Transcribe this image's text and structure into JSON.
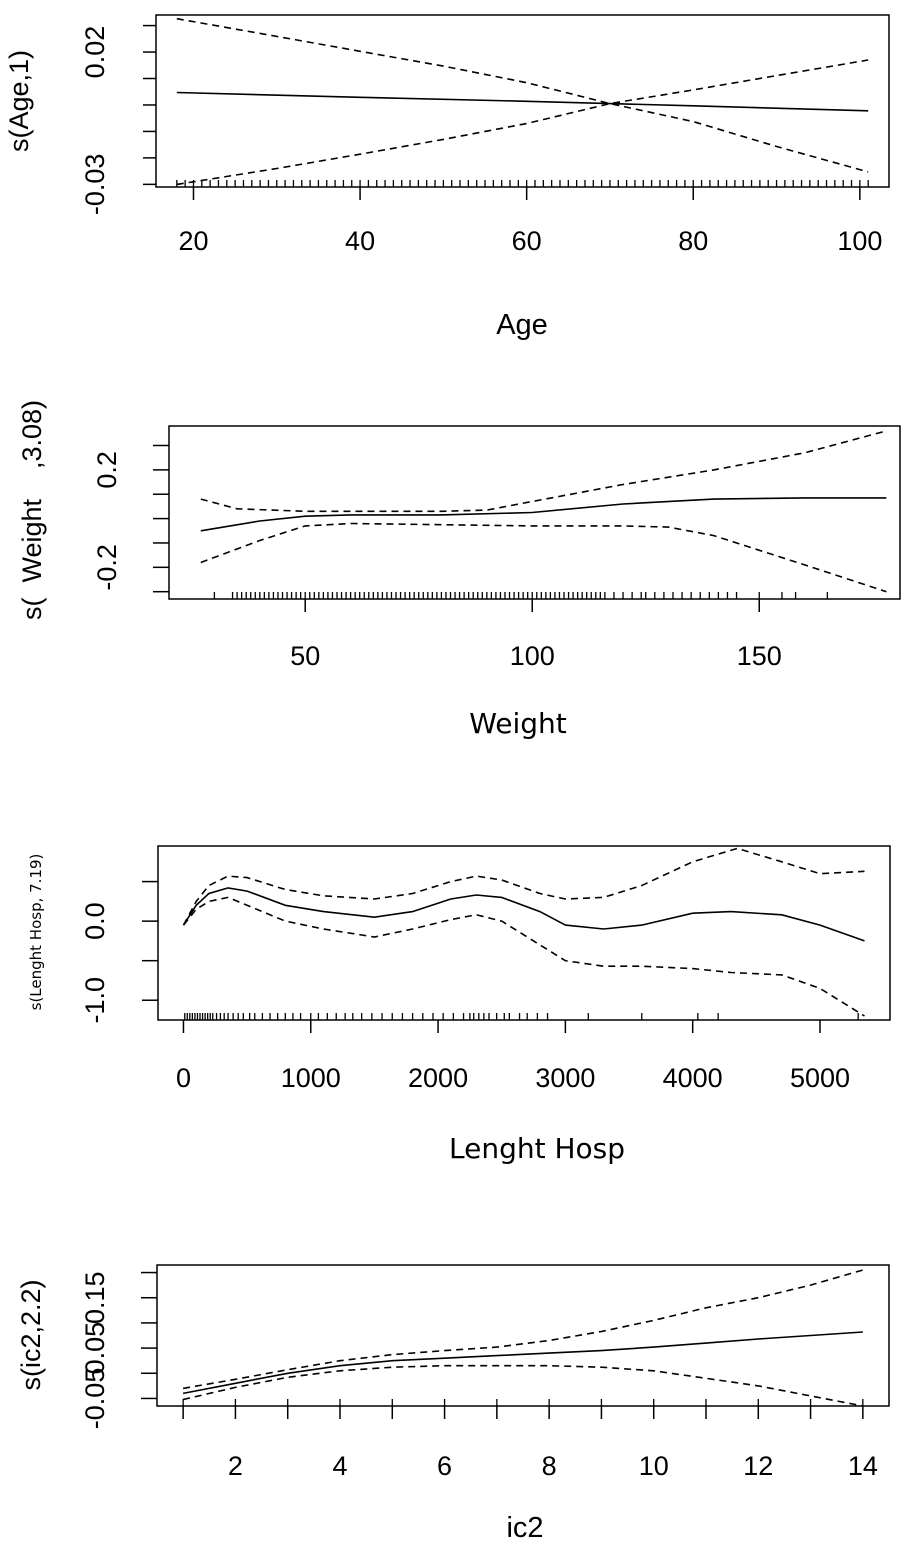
{
  "chart_data": [
    {
      "type": "line",
      "xlabel": "Age",
      "ylabel": "s(Age,1)",
      "xlim": [
        15.5,
        103.5
      ],
      "ylim": [
        -0.031,
        0.034
      ],
      "xticks": [
        20,
        40,
        60,
        80,
        100
      ],
      "xtick_labels": [
        "20",
        "40",
        "60",
        "80",
        "100"
      ],
      "yticks": [
        -0.03,
        -0.02,
        -0.01,
        0.0,
        0.01,
        0.02,
        0.03
      ],
      "ytick_labels": [
        "-0.03",
        "",
        "",
        "",
        "",
        "0.02",
        ""
      ],
      "series": [
        {
          "style": "solid",
          "x": [
            18,
            40,
            60,
            70,
            80,
            101
          ],
          "y": [
            0.0047,
            0.0029,
            0.0014,
            0.0005,
            -0.0003,
            -0.0022
          ]
        },
        {
          "style": "dashed",
          "x": [
            18,
            30,
            40,
            50,
            60,
            70,
            80,
            90,
            101
          ],
          "y": [
            0.0326,
            0.0259,
            0.0203,
            0.0147,
            0.0084,
            0.0005,
            -0.0063,
            -0.0157,
            -0.0253
          ]
        },
        {
          "style": "dashed",
          "x": [
            18,
            30,
            40,
            50,
            60,
            70,
            80,
            90,
            101
          ],
          "y": [
            -0.03,
            -0.024,
            -0.0186,
            -0.013,
            -0.007,
            0.0005,
            0.0057,
            0.0111,
            0.017
          ]
        }
      ],
      "rug": [
        18,
        19,
        20,
        21,
        22,
        23,
        24,
        25,
        26,
        27,
        28,
        29,
        30,
        31,
        32,
        33,
        34,
        35,
        36,
        37,
        38,
        39,
        40,
        41,
        42,
        43,
        44,
        45,
        46,
        47,
        48,
        49,
        50,
        51,
        52,
        53,
        54,
        55,
        56,
        57,
        58,
        59,
        60,
        61,
        62,
        63,
        64,
        65,
        66,
        67,
        68,
        69,
        70,
        71,
        72,
        73,
        74,
        75,
        76,
        77,
        78,
        79,
        80,
        81,
        82,
        83,
        84,
        85,
        86,
        87,
        88,
        89,
        90,
        91,
        92,
        93,
        94,
        95,
        96,
        97,
        98,
        99,
        100,
        101
      ]
    },
    {
      "type": "line",
      "xlabel": "Weight",
      "ylabel": "s(  Weight    ,3.08)",
      "xlim": [
        20,
        181
      ],
      "ylim": [
        -0.33,
        0.38
      ],
      "xticks": [
        50,
        100,
        150
      ],
      "xtick_labels": [
        "50",
        "100",
        "150"
      ],
      "yticks": [
        -0.3,
        -0.2,
        -0.1,
        0.0,
        0.1,
        0.2,
        0.3
      ],
      "ytick_labels": [
        "",
        "-0.2",
        "",
        "",
        "",
        "0.2",
        ""
      ],
      "series": [
        {
          "style": "solid",
          "x": [
            27,
            40,
            50,
            60,
            80,
            100,
            120,
            140,
            160,
            178
          ],
          "y": [
            -0.05,
            -0.01,
            0.01,
            0.015,
            0.015,
            0.025,
            0.06,
            0.08,
            0.085,
            0.085
          ]
        },
        {
          "style": "dashed",
          "x": [
            27,
            35,
            50,
            60,
            80,
            90,
            100,
            120,
            140,
            160,
            178
          ],
          "y": [
            0.08,
            0.04,
            0.03,
            0.03,
            0.03,
            0.035,
            0.07,
            0.14,
            0.2,
            0.27,
            0.36
          ]
        },
        {
          "style": "dashed",
          "x": [
            27,
            40,
            50,
            60,
            80,
            100,
            120,
            130,
            140,
            160,
            178
          ],
          "y": [
            -0.18,
            -0.09,
            -0.03,
            -0.02,
            -0.025,
            -0.03,
            -0.03,
            -0.035,
            -0.07,
            -0.19,
            -0.3
          ]
        }
      ],
      "rug": [
        30,
        34,
        35,
        36,
        37,
        38,
        39,
        40,
        41,
        42,
        43,
        44,
        45,
        46,
        47,
        48,
        49,
        50,
        51,
        52,
        53,
        54,
        55,
        56,
        57,
        58,
        59,
        60,
        61,
        62,
        63,
        64,
        65,
        66,
        67,
        68,
        69,
        70,
        71,
        72,
        73,
        74,
        75,
        76,
        77,
        78,
        79,
        80,
        81,
        82,
        83,
        84,
        85,
        86,
        87,
        88,
        89,
        90,
        91,
        92,
        93,
        94,
        95,
        96,
        97,
        98,
        99,
        100,
        101,
        102,
        103,
        104,
        105,
        106,
        107,
        108,
        109,
        110,
        111,
        112,
        113,
        114,
        115,
        116,
        118,
        120,
        122,
        124,
        125,
        127,
        129,
        131,
        133,
        135,
        137,
        139,
        141,
        143,
        145,
        150,
        155,
        158,
        165
      ]
    },
    {
      "type": "line",
      "xlabel": "Lenght Hosp",
      "ylabel": "s(Lenght Hosp, 7.19)",
      "xlim": [
        -200,
        5550
      ],
      "ylim": [
        -1.25,
        0.95
      ],
      "xticks": [
        0,
        1000,
        2000,
        3000,
        4000,
        5000
      ],
      "xtick_labels": [
        "0",
        "1000",
        "2000",
        "3000",
        "4000",
        "5000"
      ],
      "yticks": [
        -1.0,
        -0.5,
        0.0,
        0.5
      ],
      "ytick_labels": [
        "-1.0",
        "",
        "0.0",
        ""
      ],
      "series": [
        {
          "style": "solid",
          "x": [
            0,
            100,
            200,
            350,
            500,
            800,
            1100,
            1500,
            1800,
            2100,
            2300,
            2500,
            2800,
            3000,
            3300,
            3600,
            4000,
            4300,
            4700,
            5000,
            5350
          ],
          "y": [
            -0.05,
            0.2,
            0.35,
            0.42,
            0.38,
            0.2,
            0.12,
            0.05,
            0.12,
            0.28,
            0.33,
            0.3,
            0.12,
            -0.05,
            -0.1,
            -0.05,
            0.1,
            0.12,
            0.08,
            -0.05,
            -0.25
          ]
        },
        {
          "style": "dashed",
          "x": [
            0,
            100,
            200,
            350,
            500,
            800,
            1100,
            1500,
            1800,
            2100,
            2300,
            2500,
            2800,
            3000,
            3300,
            3600,
            4000,
            4350,
            4700,
            5000,
            5350
          ],
          "y": [
            -0.05,
            0.25,
            0.45,
            0.57,
            0.55,
            0.4,
            0.32,
            0.28,
            0.35,
            0.5,
            0.57,
            0.52,
            0.35,
            0.28,
            0.3,
            0.45,
            0.75,
            0.92,
            0.75,
            0.6,
            0.63
          ]
        },
        {
          "style": "dashed",
          "x": [
            0,
            100,
            200,
            350,
            500,
            800,
            1100,
            1500,
            1800,
            2100,
            2300,
            2500,
            2800,
            3000,
            3300,
            3600,
            4000,
            4300,
            4700,
            5000,
            5350
          ],
          "y": [
            -0.05,
            0.15,
            0.25,
            0.3,
            0.2,
            0.0,
            -0.1,
            -0.2,
            -0.1,
            0.02,
            0.08,
            0.0,
            -0.3,
            -0.5,
            -0.57,
            -0.57,
            -0.6,
            -0.65,
            -0.68,
            -0.85,
            -1.2
          ]
        }
      ],
      "rug": [
        10,
        30,
        50,
        70,
        90,
        110,
        130,
        150,
        170,
        190,
        210,
        230,
        260,
        290,
        320,
        350,
        390,
        430,
        470,
        520,
        560,
        620,
        680,
        740,
        800,
        860,
        920,
        1000,
        1060,
        1130,
        1200,
        1270,
        1330,
        1400,
        1480,
        1560,
        1640,
        1720,
        1800,
        1880,
        1960,
        2040,
        2120,
        2200,
        2250,
        2280,
        2320,
        2360,
        2400,
        2460,
        2520,
        2560,
        2640,
        2700,
        2780,
        2860,
        3180,
        3600,
        4040,
        4200,
        5300
      ]
    },
    {
      "type": "line",
      "xlabel": "ic2",
      "ylabel": "s(ic2,2.2)",
      "xlim": [
        0.5,
        14.5
      ],
      "ylim": [
        -0.065,
        0.215
      ],
      "xticks": [
        2,
        4,
        6,
        8,
        10,
        12,
        14
      ],
      "xtick_labels": [
        "2",
        "4",
        "6",
        "8",
        "10",
        "12",
        "14"
      ],
      "minor_xticks": [
        1,
        3,
        5,
        7,
        9,
        11,
        13
      ],
      "yticks": [
        -0.05,
        0.0,
        0.05,
        0.1,
        0.15,
        0.2
      ],
      "ytick_labels": [
        "-0.05",
        "",
        "0.05",
        "",
        "0.15",
        ""
      ],
      "series": [
        {
          "style": "solid",
          "x": [
            1,
            2,
            3,
            4,
            5,
            6,
            7,
            8,
            9,
            10,
            11,
            12,
            13,
            14
          ],
          "y": [
            -0.04,
            -0.02,
            0.0,
            0.015,
            0.025,
            0.03,
            0.035,
            0.04,
            0.045,
            0.052,
            0.06,
            0.068,
            0.075,
            0.082
          ]
        },
        {
          "style": "dashed",
          "x": [
            1,
            2,
            3,
            4,
            5,
            6,
            7,
            8,
            9,
            10,
            11,
            12,
            13,
            14
          ],
          "y": [
            -0.03,
            -0.012,
            0.007,
            0.025,
            0.037,
            0.045,
            0.052,
            0.065,
            0.083,
            0.105,
            0.13,
            0.15,
            0.175,
            0.205
          ]
        },
        {
          "style": "dashed",
          "x": [
            1,
            2,
            3,
            4,
            5,
            6,
            7,
            8,
            9,
            10,
            11,
            12,
            13,
            14
          ],
          "y": [
            -0.052,
            -0.028,
            -0.008,
            0.005,
            0.012,
            0.015,
            0.015,
            0.015,
            0.012,
            0.005,
            -0.01,
            -0.025,
            -0.045,
            -0.065
          ]
        }
      ],
      "rug": [
        1,
        2,
        3,
        4,
        5,
        6,
        7,
        8,
        9,
        10,
        11,
        12,
        13,
        14
      ]
    }
  ]
}
